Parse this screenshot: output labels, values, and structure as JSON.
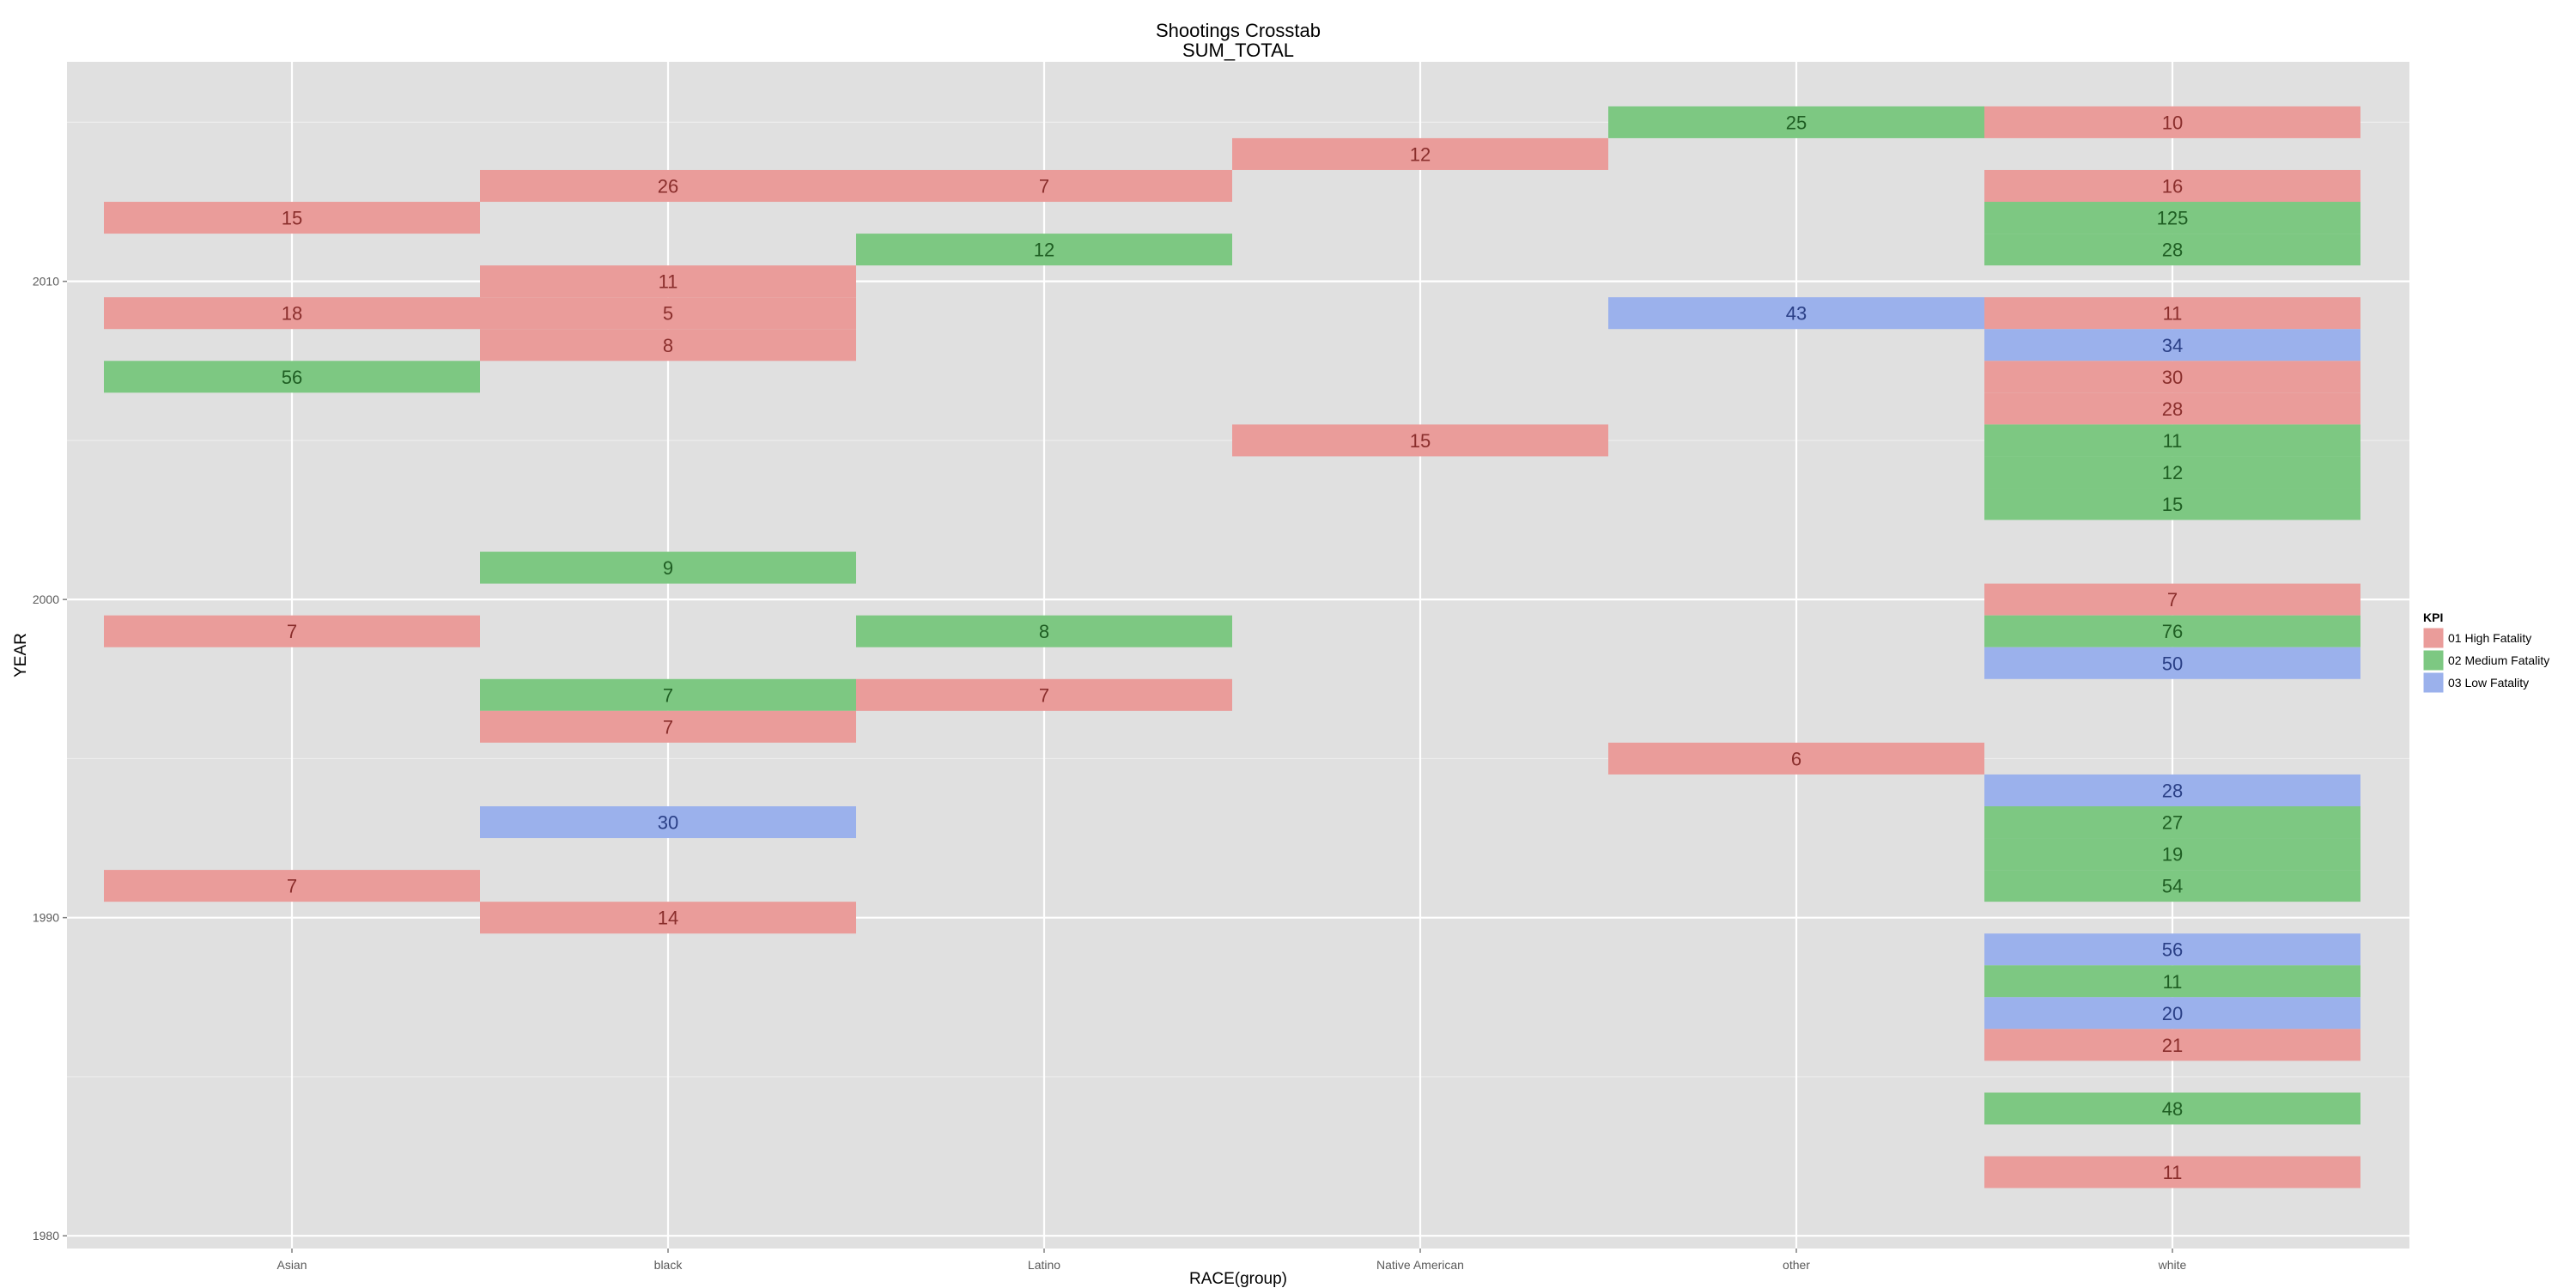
{
  "chart_data": {
    "type": "heatmap",
    "title": "Shootings Crosstab",
    "subtitle": "SUM_TOTAL",
    "xlabel": "RACE(group)",
    "ylabel": "YEAR",
    "categories": [
      "Asian",
      "black",
      "Latino",
      "Native American",
      "other",
      "white"
    ],
    "y_ticks": [
      1980,
      1990,
      2000,
      2010
    ],
    "ylim": [
      1979.6,
      2016.9
    ],
    "grid": true,
    "legend": {
      "title": "KPI",
      "position": "right",
      "entries": [
        {
          "label": "01 High Fatality",
          "color": "#EA9C9A"
        },
        {
          "label": "02 Medium Fatality",
          "color": "#7DC882"
        },
        {
          "label": "03 Low Fatality",
          "color": "#9BB1EC"
        }
      ]
    },
    "label_colors": {
      "01 High Fatality": "#8a2e2c",
      "02 Medium Fatality": "#1f5e23",
      "03 Low Fatality": "#2a3f86"
    },
    "cells": [
      {
        "race": "other",
        "year": 2015,
        "value": 25,
        "kpi": "02 Medium Fatality"
      },
      {
        "race": "white",
        "year": 2015,
        "value": 10,
        "kpi": "01 High Fatality"
      },
      {
        "race": "Native American",
        "year": 2014,
        "value": 12,
        "kpi": "01 High Fatality"
      },
      {
        "race": "black",
        "year": 2013,
        "value": 26,
        "kpi": "01 High Fatality"
      },
      {
        "race": "Latino",
        "year": 2013,
        "value": 7,
        "kpi": "01 High Fatality"
      },
      {
        "race": "white",
        "year": 2013,
        "value": 16,
        "kpi": "01 High Fatality"
      },
      {
        "race": "Asian",
        "year": 2012,
        "value": 15,
        "kpi": "01 High Fatality"
      },
      {
        "race": "white",
        "year": 2012,
        "value": 125,
        "kpi": "02 Medium Fatality"
      },
      {
        "race": "Latino",
        "year": 2011,
        "value": 12,
        "kpi": "02 Medium Fatality"
      },
      {
        "race": "white",
        "year": 2011,
        "value": 28,
        "kpi": "02 Medium Fatality"
      },
      {
        "race": "black",
        "year": 2010,
        "value": 11,
        "kpi": "01 High Fatality"
      },
      {
        "race": "Asian",
        "year": 2009,
        "value": 18,
        "kpi": "01 High Fatality"
      },
      {
        "race": "black",
        "year": 2009,
        "value": 5,
        "kpi": "01 High Fatality"
      },
      {
        "race": "other",
        "year": 2009,
        "value": 43,
        "kpi": "03 Low Fatality"
      },
      {
        "race": "white",
        "year": 2009,
        "value": 11,
        "kpi": "01 High Fatality"
      },
      {
        "race": "black",
        "year": 2008,
        "value": 8,
        "kpi": "01 High Fatality"
      },
      {
        "race": "white",
        "year": 2008,
        "value": 34,
        "kpi": "03 Low Fatality"
      },
      {
        "race": "Asian",
        "year": 2007,
        "value": 56,
        "kpi": "02 Medium Fatality"
      },
      {
        "race": "white",
        "year": 2007,
        "value": 30,
        "kpi": "01 High Fatality"
      },
      {
        "race": "white",
        "year": 2006,
        "value": 28,
        "kpi": "01 High Fatality"
      },
      {
        "race": "Native American",
        "year": 2005,
        "value": 15,
        "kpi": "01 High Fatality"
      },
      {
        "race": "white",
        "year": 2005,
        "value": 11,
        "kpi": "02 Medium Fatality"
      },
      {
        "race": "white",
        "year": 2004,
        "value": 12,
        "kpi": "02 Medium Fatality"
      },
      {
        "race": "white",
        "year": 2003,
        "value": 15,
        "kpi": "02 Medium Fatality"
      },
      {
        "race": "black",
        "year": 2001,
        "value": 9,
        "kpi": "02 Medium Fatality"
      },
      {
        "race": "white",
        "year": 2000,
        "value": 7,
        "kpi": "01 High Fatality"
      },
      {
        "race": "Asian",
        "year": 1999,
        "value": 7,
        "kpi": "01 High Fatality"
      },
      {
        "race": "Latino",
        "year": 1999,
        "value": 8,
        "kpi": "02 Medium Fatality"
      },
      {
        "race": "white",
        "year": 1999,
        "value": 76,
        "kpi": "02 Medium Fatality"
      },
      {
        "race": "white",
        "year": 1998,
        "value": 50,
        "kpi": "03 Low Fatality"
      },
      {
        "race": "black",
        "year": 1997,
        "value": 7,
        "kpi": "02 Medium Fatality"
      },
      {
        "race": "Latino",
        "year": 1997,
        "value": 7,
        "kpi": "01 High Fatality"
      },
      {
        "race": "black",
        "year": 1996,
        "value": 7,
        "kpi": "01 High Fatality"
      },
      {
        "race": "other",
        "year": 1995,
        "value": 6,
        "kpi": "01 High Fatality"
      },
      {
        "race": "white",
        "year": 1994,
        "value": 28,
        "kpi": "03 Low Fatality"
      },
      {
        "race": "black",
        "year": 1993,
        "value": 30,
        "kpi": "03 Low Fatality"
      },
      {
        "race": "white",
        "year": 1993,
        "value": 27,
        "kpi": "02 Medium Fatality"
      },
      {
        "race": "white",
        "year": 1992,
        "value": 19,
        "kpi": "02 Medium Fatality"
      },
      {
        "race": "Asian",
        "year": 1991,
        "value": 7,
        "kpi": "01 High Fatality"
      },
      {
        "race": "white",
        "year": 1991,
        "value": 54,
        "kpi": "02 Medium Fatality"
      },
      {
        "race": "black",
        "year": 1990,
        "value": 14,
        "kpi": "01 High Fatality"
      },
      {
        "race": "white",
        "year": 1989,
        "value": 56,
        "kpi": "03 Low Fatality"
      },
      {
        "race": "white",
        "year": 1988,
        "value": 11,
        "kpi": "02 Medium Fatality"
      },
      {
        "race": "white",
        "year": 1987,
        "value": 20,
        "kpi": "03 Low Fatality"
      },
      {
        "race": "white",
        "year": 1986,
        "value": 21,
        "kpi": "01 High Fatality"
      },
      {
        "race": "white",
        "year": 1984,
        "value": 48,
        "kpi": "02 Medium Fatality"
      },
      {
        "race": "white",
        "year": 1982,
        "value": 11,
        "kpi": "01 High Fatality"
      }
    ]
  }
}
